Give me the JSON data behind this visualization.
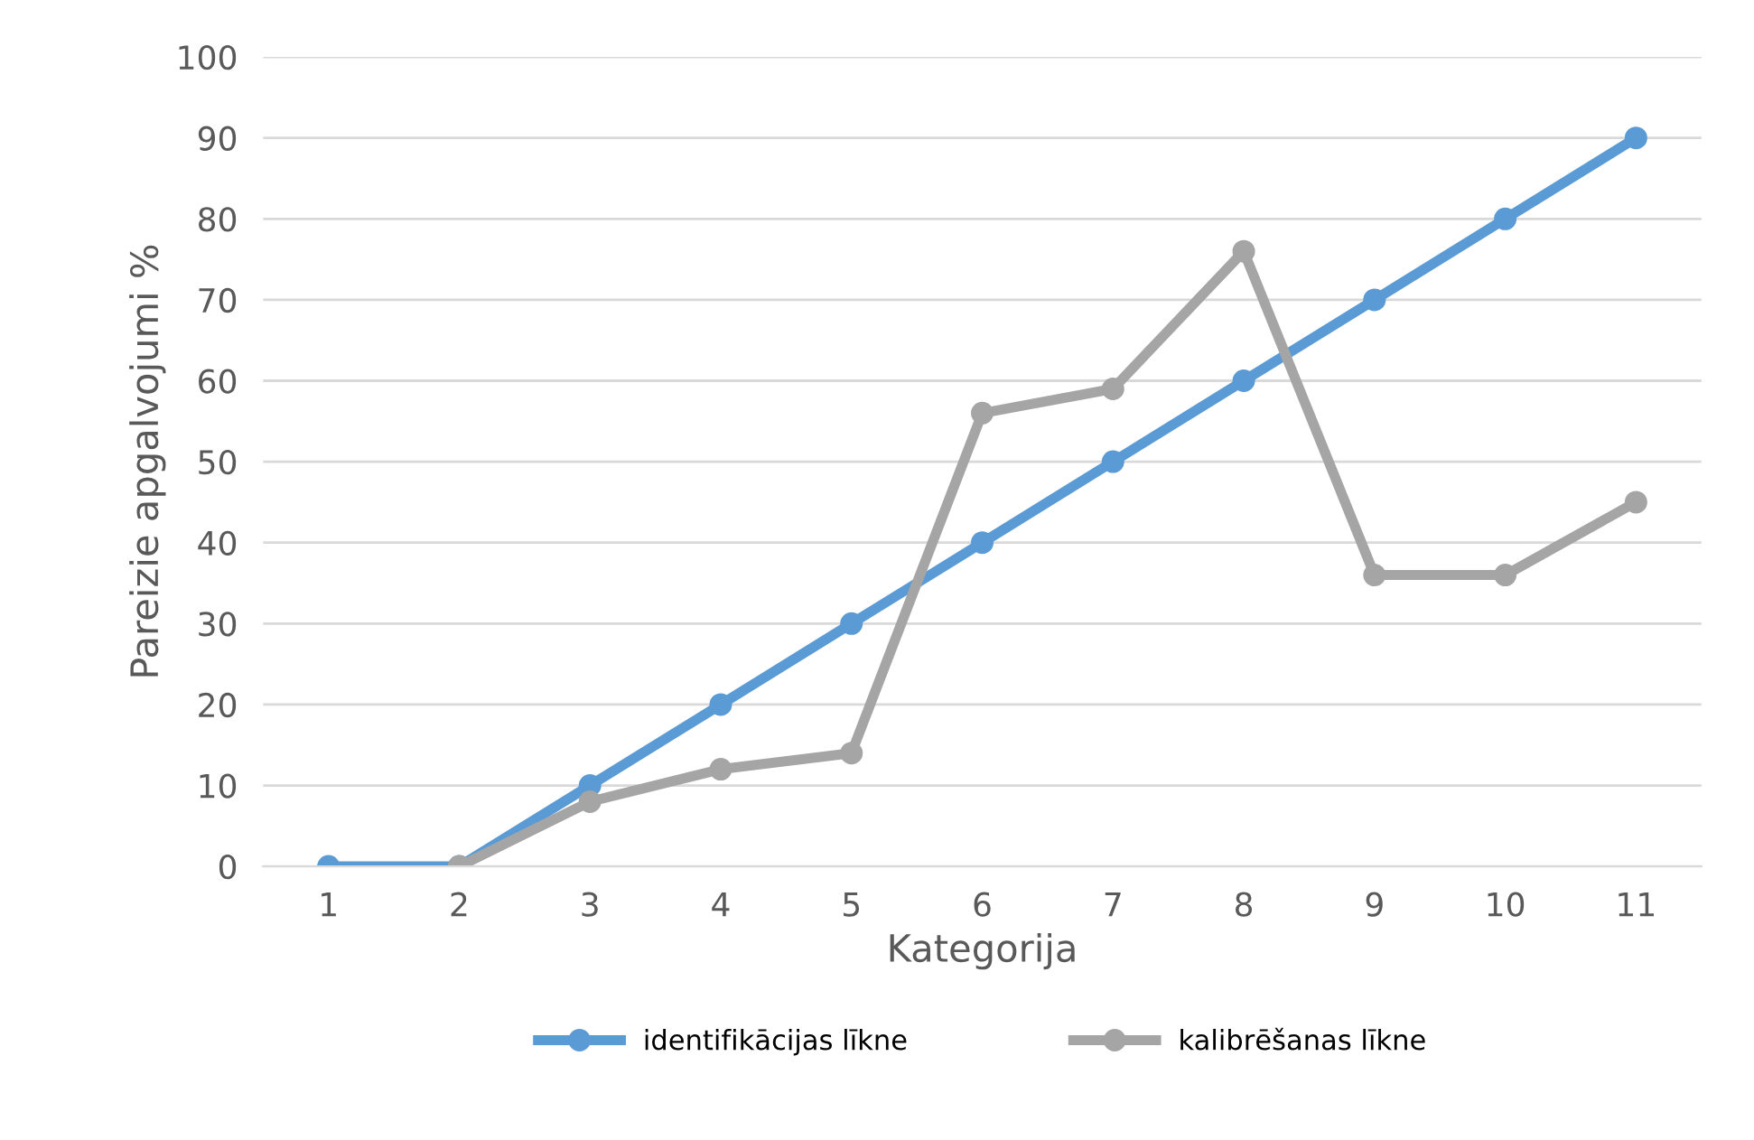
{
  "chart_data": {
    "type": "line",
    "xlabel": "Kategorija",
    "ylabel": "Pareizie apgalvojumi %",
    "categories": [
      "1",
      "2",
      "3",
      "4",
      "5",
      "6",
      "7",
      "8",
      "9",
      "10",
      "11"
    ],
    "series": [
      {
        "name": "identifikācijas līkne",
        "color": "#5b9bd5",
        "values": [
          0,
          0,
          10,
          20,
          30,
          40,
          50,
          60,
          70,
          80,
          90
        ]
      },
      {
        "name": "kalibrēšanas līkne",
        "color": "#a5a5a5",
        "values": [
          null,
          0,
          8,
          12,
          14,
          56,
          59,
          76,
          36,
          36,
          45
        ]
      }
    ],
    "ylim": [
      0,
      100
    ],
    "yticks": [
      0,
      10,
      20,
      30,
      40,
      50,
      60,
      70,
      80,
      90,
      100
    ],
    "grid": "y",
    "legend": "bottom",
    "marker": "circle",
    "line_style": "solid"
  }
}
